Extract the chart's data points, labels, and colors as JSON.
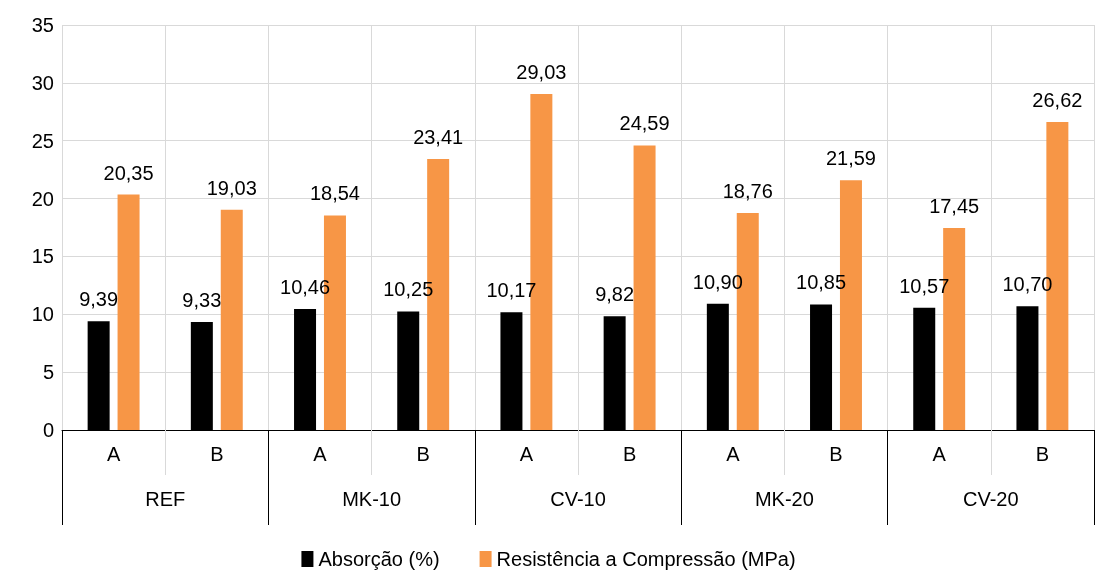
{
  "chart_data": {
    "type": "bar",
    "categories": [
      "A",
      "B",
      "A",
      "B",
      "A",
      "B",
      "A",
      "B",
      "A",
      "B"
    ],
    "annotations": [
      "REF",
      "MK-10",
      "CV-10",
      "MK-20",
      "CV-20"
    ],
    "series": [
      {
        "name": "Absorção (%)",
        "color": "#000000",
        "values": [
          9.39,
          9.33,
          10.46,
          10.25,
          10.17,
          9.82,
          10.9,
          10.85,
          10.57,
          10.7
        ],
        "value_labels": [
          "9,39",
          "9,33",
          "10,46",
          "10,25",
          "10,17",
          "9,82",
          "10,90",
          "10,85",
          "10,57",
          "10,70"
        ]
      },
      {
        "name": "Resistência a Compressão (MPa)",
        "color": "#f79646",
        "values": [
          20.35,
          19.03,
          18.54,
          23.41,
          29.03,
          24.59,
          18.76,
          21.59,
          17.45,
          26.62
        ],
        "value_labels": [
          "20,35",
          "19,03",
          "18,54",
          "23,41",
          "29,03",
          "24,59",
          "18,76",
          "21,59",
          "17,45",
          "26,62"
        ]
      }
    ],
    "ylim": [
      0,
      35
    ],
    "yticks": [
      0,
      5,
      10,
      15,
      20,
      25,
      30,
      35
    ],
    "grid": true,
    "legend": "bottom"
  }
}
